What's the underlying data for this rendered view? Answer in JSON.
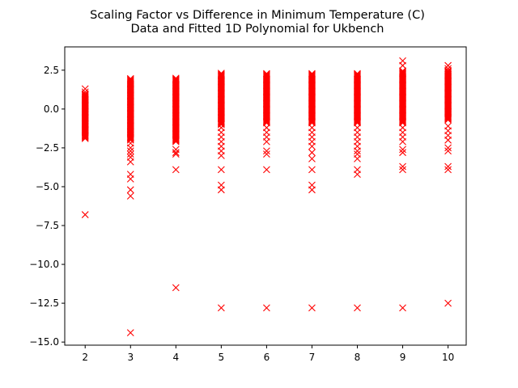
{
  "chart_data": {
    "type": "scatter",
    "title": "Scaling Factor vs Difference in Minimum Temperature (C)",
    "subtitle": "Data and Fitted 1D Polynomial for Ukbench",
    "xlabel": "",
    "ylabel": "",
    "xlim": [
      1.55,
      10.4
    ],
    "ylim": [
      -15.2,
      4.0
    ],
    "xticks": [
      2,
      3,
      4,
      5,
      6,
      7,
      8,
      9,
      10
    ],
    "yticks": [
      2.5,
      0.0,
      -2.5,
      -5.0,
      -7.5,
      -10.0,
      -12.5,
      -15.0
    ],
    "ytick_labels": [
      "2.5",
      "0.0",
      "−2.5",
      "−5.0",
      "−7.5",
      "−10.0",
      "−12.5",
      "−15.0"
    ],
    "grid": false,
    "marker": "x",
    "color": "#ff0000",
    "series": [
      {
        "dense_ranges": [
          {
            "x": 2,
            "y_min": -1.9,
            "y_max": 1.0
          },
          {
            "x": 3,
            "y_min": -2.0,
            "y_max": 2.0
          },
          {
            "x": 4,
            "y_min": -2.1,
            "y_max": 2.0
          },
          {
            "x": 5,
            "y_min": -1.0,
            "y_max": 2.3
          },
          {
            "x": 6,
            "y_min": -0.9,
            "y_max": 2.3
          },
          {
            "x": 7,
            "y_min": -0.9,
            "y_max": 2.3
          },
          {
            "x": 8,
            "y_min": -0.9,
            "y_max": 2.3
          },
          {
            "x": 9,
            "y_min": -0.9,
            "y_max": 2.5
          },
          {
            "x": 10,
            "y_min": -0.7,
            "y_max": 2.5
          }
        ],
        "points": [
          {
            "x": 2,
            "y": 1.3
          },
          {
            "x": 2,
            "y": 1.1
          },
          {
            "x": 2,
            "y": -6.8
          },
          {
            "x": 3,
            "y": -2.2
          },
          {
            "x": 3,
            "y": -2.5
          },
          {
            "x": 3,
            "y": -2.7
          },
          {
            "x": 3,
            "y": -2.9
          },
          {
            "x": 3,
            "y": -3.1
          },
          {
            "x": 3,
            "y": -3.4
          },
          {
            "x": 3,
            "y": -4.2
          },
          {
            "x": 3,
            "y": -4.5
          },
          {
            "x": 3,
            "y": -5.2
          },
          {
            "x": 3,
            "y": -5.6
          },
          {
            "x": 3,
            "y": -14.4
          },
          {
            "x": 4,
            "y": -2.6
          },
          {
            "x": 4,
            "y": -2.8
          },
          {
            "x": 4,
            "y": -2.9
          },
          {
            "x": 4,
            "y": -3.9
          },
          {
            "x": 4,
            "y": -11.5
          },
          {
            "x": 5,
            "y": -1.2
          },
          {
            "x": 5,
            "y": -1.5
          },
          {
            "x": 5,
            "y": -1.8
          },
          {
            "x": 5,
            "y": -2.1
          },
          {
            "x": 5,
            "y": -2.4
          },
          {
            "x": 5,
            "y": -2.7
          },
          {
            "x": 5,
            "y": -3.0
          },
          {
            "x": 5,
            "y": -3.9
          },
          {
            "x": 5,
            "y": -4.9
          },
          {
            "x": 5,
            "y": -5.2
          },
          {
            "x": 5,
            "y": -12.8
          },
          {
            "x": 6,
            "y": -1.2
          },
          {
            "x": 6,
            "y": -1.5
          },
          {
            "x": 6,
            "y": -1.8
          },
          {
            "x": 6,
            "y": -2.1
          },
          {
            "x": 6,
            "y": -2.7
          },
          {
            "x": 6,
            "y": -2.9
          },
          {
            "x": 6,
            "y": -3.9
          },
          {
            "x": 6,
            "y": -12.8
          },
          {
            "x": 7,
            "y": -1.2
          },
          {
            "x": 7,
            "y": -1.5
          },
          {
            "x": 7,
            "y": -1.8
          },
          {
            "x": 7,
            "y": -2.1
          },
          {
            "x": 7,
            "y": -2.4
          },
          {
            "x": 7,
            "y": -2.8
          },
          {
            "x": 7,
            "y": -3.2
          },
          {
            "x": 7,
            "y": -3.9
          },
          {
            "x": 7,
            "y": -4.9
          },
          {
            "x": 7,
            "y": -5.2
          },
          {
            "x": 7,
            "y": -12.8
          },
          {
            "x": 8,
            "y": -1.2
          },
          {
            "x": 8,
            "y": -1.5
          },
          {
            "x": 8,
            "y": -1.8
          },
          {
            "x": 8,
            "y": -2.1
          },
          {
            "x": 8,
            "y": -2.4
          },
          {
            "x": 8,
            "y": -2.7
          },
          {
            "x": 8,
            "y": -2.9
          },
          {
            "x": 8,
            "y": -3.2
          },
          {
            "x": 8,
            "y": -3.9
          },
          {
            "x": 8,
            "y": -4.2
          },
          {
            "x": 8,
            "y": -12.8
          },
          {
            "x": 9,
            "y": 3.1
          },
          {
            "x": 9,
            "y": 2.8
          },
          {
            "x": 9,
            "y": -1.2
          },
          {
            "x": 9,
            "y": -1.5
          },
          {
            "x": 9,
            "y": -1.8
          },
          {
            "x": 9,
            "y": -2.1
          },
          {
            "x": 9,
            "y": -2.6
          },
          {
            "x": 9,
            "y": -2.8
          },
          {
            "x": 9,
            "y": -3.7
          },
          {
            "x": 9,
            "y": -3.9
          },
          {
            "x": 9,
            "y": -12.8
          },
          {
            "x": 10,
            "y": 2.8
          },
          {
            "x": 10,
            "y": 2.6
          },
          {
            "x": 10,
            "y": -1.1
          },
          {
            "x": 10,
            "y": -1.4
          },
          {
            "x": 10,
            "y": -1.7
          },
          {
            "x": 10,
            "y": -2.0
          },
          {
            "x": 10,
            "y": -2.5
          },
          {
            "x": 10,
            "y": -2.7
          },
          {
            "x": 10,
            "y": -3.7
          },
          {
            "x": 10,
            "y": -3.9
          },
          {
            "x": 10,
            "y": -12.5
          }
        ]
      }
    ]
  }
}
